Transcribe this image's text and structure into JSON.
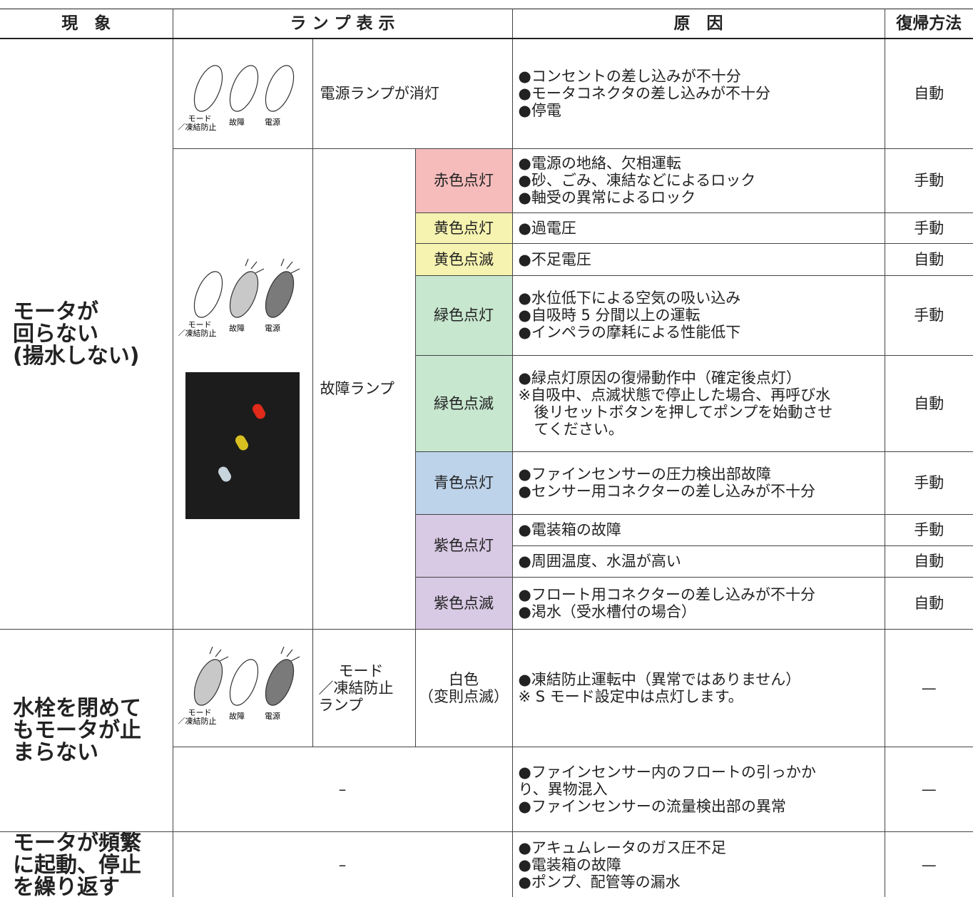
{
  "header": {
    "symptom": "現　象",
    "lamp": "ラ ン プ 表 示",
    "cause": "原　因",
    "recovery": "復帰方法"
  },
  "lamp_icon_labels": [
    "モード",
    "／凍結防止",
    "故障",
    "電源"
  ],
  "symptoms": [
    [
      "モータが",
      "回らない",
      "(揚水しない)"
    ],
    [
      "水栓を閉めて",
      "もモータが止",
      "まらない"
    ],
    [
      "モータが頻繁",
      "に起動、停止",
      "を繰り返す"
    ]
  ],
  "power_off": {
    "lamp": "電源ランプが消灯",
    "causes": [
      "●コンセントの差し込みが不十分",
      "●モータコネクタの差し込みが不十分",
      "●停電"
    ],
    "recovery": "自動"
  },
  "fault": {
    "lamp": "故障ランプ",
    "states": [
      {
        "color": "赤色点灯",
        "causes": [
          "●電源の地絡、欠相運転",
          "●砂、ごみ、凍結などによるロック",
          "●軸受の異常によるロック"
        ],
        "recovery": "手動"
      },
      {
        "color": "黄色点灯",
        "causes": [
          "●過電圧"
        ],
        "recovery": "手動"
      },
      {
        "color": "黄色点滅",
        "causes": [
          "●不足電圧"
        ],
        "recovery": "自動"
      },
      {
        "color": "緑色点灯",
        "causes": [
          "●水位低下による空気の吸い込み",
          "●自吸時 5 分間以上の運転",
          "●インペラの摩耗による性能低下"
        ],
        "recovery": "手動"
      },
      {
        "color": "緑色点滅",
        "causes": [
          "●緑点灯原因の復帰動作中（確定後点灯）",
          "※自吸中、点滅状態で停止した場合、再呼び水",
          "後リセットボタンを押してポンプを始動させ",
          "てください。"
        ],
        "recovery": "自動"
      },
      {
        "color": "青色点灯",
        "causes": [
          "●ファインセンサーの圧力検出部故障",
          "●センサー用コネクターの差し込みが不十分"
        ],
        "recovery": "手動"
      },
      {
        "color": "紫色点灯",
        "causes": [
          "●電装箱の故障"
        ],
        "recovery": "手動"
      },
      {
        "causes": [
          "●周囲温度、水温が高い"
        ],
        "recovery": "自動"
      },
      {
        "color": "紫色点滅",
        "causes": [
          "●フロート用コネクターの差し込みが不十分",
          "●渇水（受水槽付の場合）"
        ],
        "recovery": "自動"
      }
    ]
  },
  "freeze": {
    "lamp": [
      "モード",
      "／凍結防止",
      "ランプ"
    ],
    "color": [
      "白色",
      "（変則点滅）"
    ],
    "causes": [
      "●凍結防止運転中（異常ではありません）",
      "※ S モード設定中は点灯します。"
    ],
    "recovery": "—"
  },
  "no_lamp": [
    {
      "lamp": "–",
      "causes": [
        "●ファインセンサー内のフロートの引っかか",
        "り、異物混入",
        "●ファインセンサーの流量検出部の異常"
      ],
      "recovery": "—"
    },
    {
      "lamp": "–",
      "causes": [
        "●アキュムレータのガス圧不足",
        "●電装箱の故障",
        "●ポンプ、配管等の漏水"
      ],
      "recovery": "—"
    }
  ]
}
